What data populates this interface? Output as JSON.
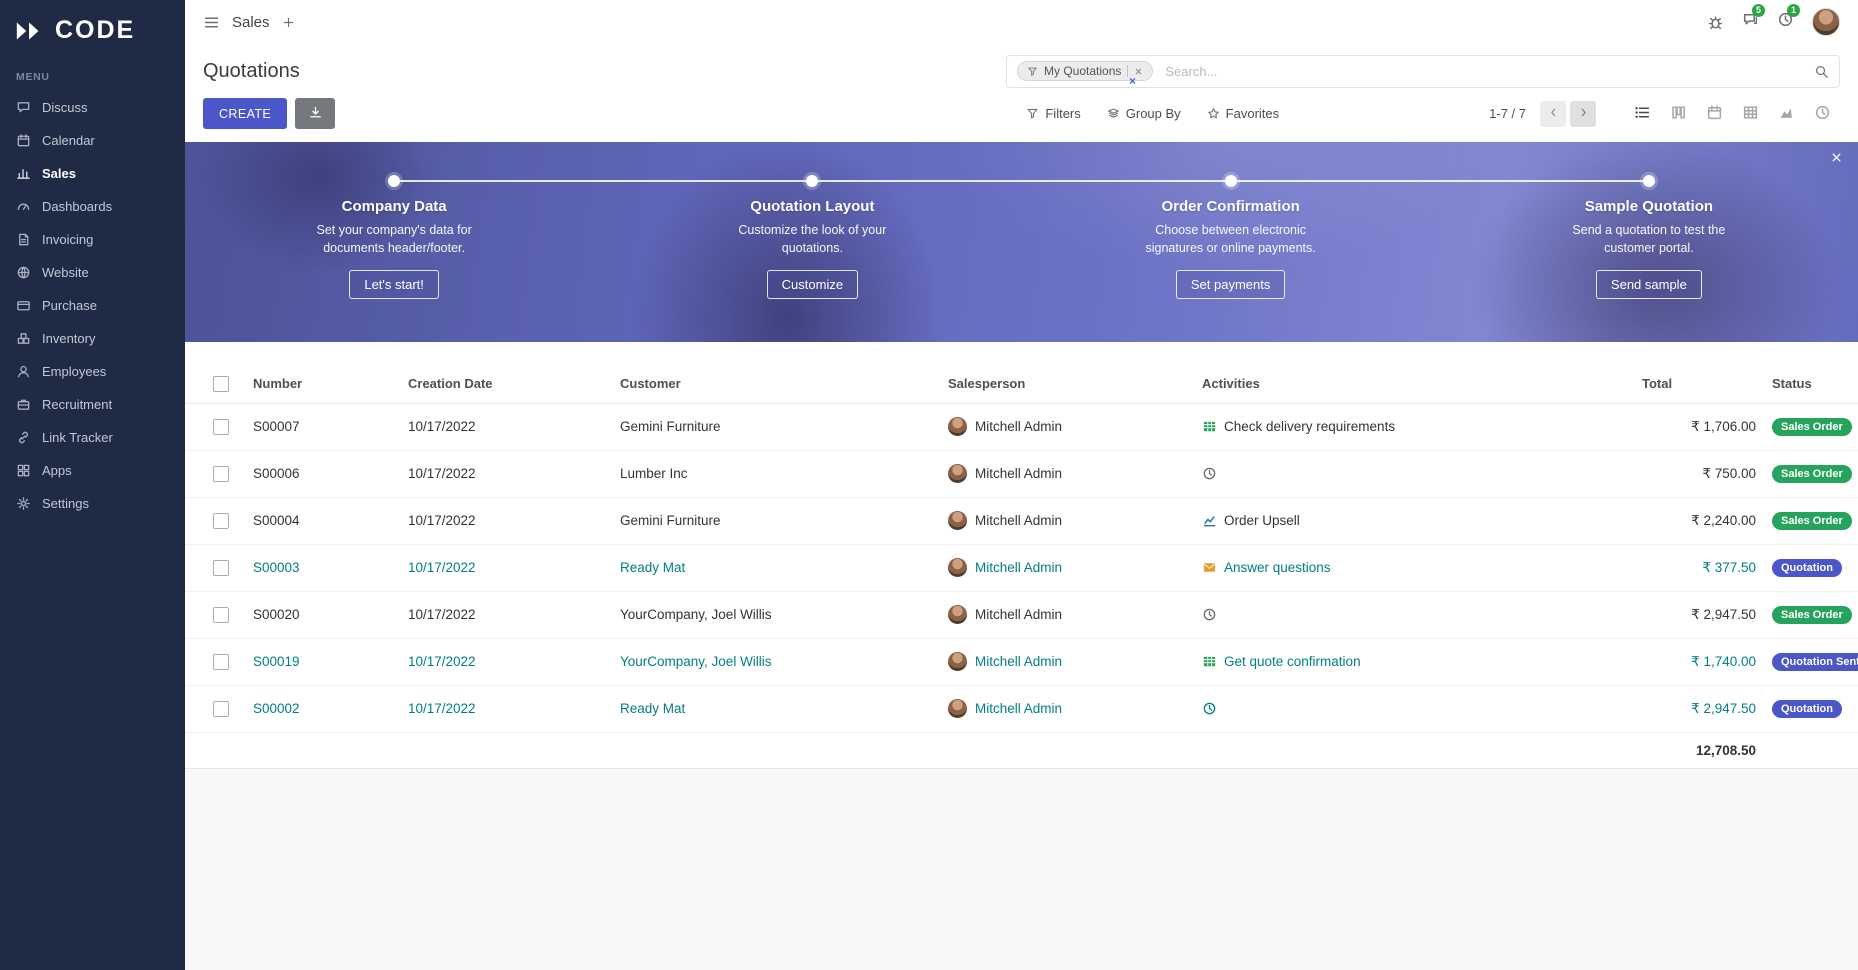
{
  "colors": {
    "accent_indigo": "#4b57c8",
    "badge_green": "#26a45d",
    "badge_indigo": "#4b57c8",
    "link_teal": "#017e84",
    "sidebar_bg": "#1f2a44",
    "banner_purple": "#6b71c4",
    "topbar_badge_green": "#28a745"
  },
  "sidebar": {
    "logo_text": "CODE",
    "menu_label": "MENU",
    "items": [
      {
        "label": "Discuss",
        "icon": "discuss"
      },
      {
        "label": "Calendar",
        "icon": "calendar"
      },
      {
        "label": "Sales",
        "icon": "sales",
        "active": true
      },
      {
        "label": "Dashboards",
        "icon": "dashboards"
      },
      {
        "label": "Invoicing",
        "icon": "invoicing"
      },
      {
        "label": "Website",
        "icon": "website"
      },
      {
        "label": "Purchase",
        "icon": "purchase"
      },
      {
        "label": "Inventory",
        "icon": "inventory"
      },
      {
        "label": "Employees",
        "icon": "employees"
      },
      {
        "label": "Recruitment",
        "icon": "recruitment"
      },
      {
        "label": "Link Tracker",
        "icon": "link"
      },
      {
        "label": "Apps",
        "icon": "apps"
      },
      {
        "label": "Settings",
        "icon": "settings"
      }
    ]
  },
  "topbar": {
    "app_name": "Sales",
    "message_badge": "5",
    "activity_badge": "1"
  },
  "control_panel": {
    "title": "Quotations",
    "create_label": "CREATE",
    "filters_label": "Filters",
    "group_by_label": "Group By",
    "favorites_label": "Favorites",
    "pager": "1-7 / 7",
    "search": {
      "facet": "My Quotations",
      "placeholder": "Search..."
    },
    "views": [
      {
        "name": "list",
        "active": true
      },
      {
        "name": "kanban",
        "active": false
      },
      {
        "name": "calendar",
        "active": false
      },
      {
        "name": "pivot",
        "active": false
      },
      {
        "name": "graph",
        "active": false
      },
      {
        "name": "activity",
        "active": false
      }
    ]
  },
  "banner": {
    "steps": [
      {
        "title": "Company Data",
        "desc": "Set your company's data for documents header/footer.",
        "button": "Let's start!"
      },
      {
        "title": "Quotation Layout",
        "desc": "Customize the look of your quotations.",
        "button": "Customize"
      },
      {
        "title": "Order Confirmation",
        "desc": "Choose between electronic signatures or online payments.",
        "button": "Set payments"
      },
      {
        "title": "Sample Quotation",
        "desc": "Send a quotation to test the customer portal.",
        "button": "Send sample"
      }
    ]
  },
  "table": {
    "headers": {
      "number": "Number",
      "creation_date": "Creation Date",
      "customer": "Customer",
      "salesperson": "Salesperson",
      "activities": "Activities",
      "total": "Total",
      "status": "Status"
    },
    "rows": [
      {
        "number": "S00007",
        "creation_date": "10/17/2022",
        "customer": "Gemini Furniture",
        "salesperson": "Mitchell Admin",
        "activity_icon": "spreadsheet",
        "activity": "Check delivery requirements",
        "total": "₹ 1,706.00",
        "status": "Sales Order",
        "status_color": "green",
        "highlight": false
      },
      {
        "number": "S00006",
        "creation_date": "10/17/2022",
        "customer": "Lumber Inc",
        "salesperson": "Mitchell Admin",
        "activity_icon": "clock",
        "activity": "",
        "total": "₹ 750.00",
        "status": "Sales Order",
        "status_color": "green",
        "highlight": false
      },
      {
        "number": "S00004",
        "creation_date": "10/17/2022",
        "customer": "Gemini Furniture",
        "salesperson": "Mitchell Admin",
        "activity_icon": "chart",
        "activity": "Order Upsell",
        "total": "₹ 2,240.00",
        "status": "Sales Order",
        "status_color": "green",
        "highlight": false
      },
      {
        "number": "S00003",
        "creation_date": "10/17/2022",
        "customer": "Ready Mat",
        "salesperson": "Mitchell Admin",
        "activity_icon": "envelope",
        "activity": "Answer questions",
        "total": "₹ 377.50",
        "status": "Quotation",
        "status_color": "indigo",
        "highlight": true
      },
      {
        "number": "S00020",
        "creation_date": "10/17/2022",
        "customer": "YourCompany, Joel Willis",
        "salesperson": "Mitchell Admin",
        "activity_icon": "clock",
        "activity": "",
        "total": "₹ 2,947.50",
        "status": "Sales Order",
        "status_color": "green",
        "highlight": false
      },
      {
        "number": "S00019",
        "creation_date": "10/17/2022",
        "customer": "YourCompany, Joel Willis",
        "salesperson": "Mitchell Admin",
        "activity_icon": "spreadsheet",
        "activity": "Get quote confirmation",
        "total": "₹ 1,740.00",
        "status": "Quotation Sent",
        "status_color": "indigo",
        "highlight": true
      },
      {
        "number": "S00002",
        "creation_date": "10/17/2022",
        "customer": "Ready Mat",
        "salesperson": "Mitchell Admin",
        "activity_icon": "clock",
        "activity": "",
        "total": "₹ 2,947.50",
        "status": "Quotation",
        "status_color": "indigo",
        "highlight": true
      }
    ],
    "footer_total": "12,708.50"
  }
}
